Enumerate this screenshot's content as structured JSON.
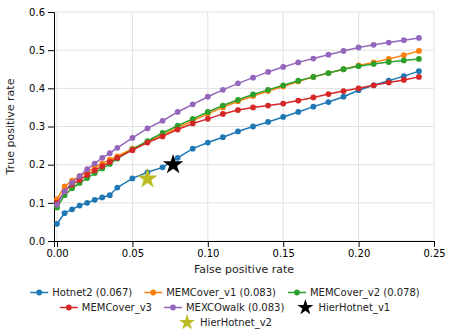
{
  "chart_data": {
    "type": "line",
    "xlabel": "False positive rate",
    "ylabel": "True positive rate",
    "xlim": [
      -0.002,
      0.25
    ],
    "ylim": [
      0.0,
      0.6
    ],
    "xticks": [
      {
        "value": 0.0,
        "label": "0.00"
      },
      0.05,
      {
        "value": 0.1,
        "label": "0.10"
      },
      0.15,
      {
        "value": 0.2,
        "label": "0.20"
      },
      0.25
    ],
    "yticks": [
      {
        "value": 0.0,
        "label": "0.0"
      },
      0.1,
      0.2,
      0.3,
      0.4,
      0.5,
      0.6
    ],
    "grid": true,
    "legend": "bottom",
    "series": [
      {
        "name": "Hotnet2 (0.067)",
        "type": "line",
        "marker": "circle",
        "color": "#1f77b4",
        "x": [
          0.0,
          0.005,
          0.01,
          0.015,
          0.02,
          0.025,
          0.03,
          0.035,
          0.04,
          0.05,
          0.06,
          0.07,
          0.08,
          0.09,
          0.1,
          0.11,
          0.12,
          0.13,
          0.14,
          0.15,
          0.16,
          0.17,
          0.18,
          0.19,
          0.2,
          0.21,
          0.22,
          0.23,
          0.24
        ],
        "values": [
          0.045,
          0.073,
          0.083,
          0.093,
          0.1,
          0.108,
          0.114,
          0.12,
          0.14,
          0.164,
          0.18,
          0.193,
          0.218,
          0.242,
          0.258,
          0.272,
          0.287,
          0.3,
          0.312,
          0.325,
          0.338,
          0.352,
          0.364,
          0.378,
          0.395,
          0.408,
          0.42,
          0.432,
          0.445
        ]
      },
      {
        "name": "MEMCover_v1 (0.083)",
        "type": "line",
        "marker": "circle",
        "color": "#ff7f0e",
        "x": [
          0.0,
          0.005,
          0.01,
          0.015,
          0.02,
          0.025,
          0.03,
          0.035,
          0.04,
          0.05,
          0.06,
          0.07,
          0.08,
          0.09,
          0.1,
          0.11,
          0.12,
          0.13,
          0.14,
          0.15,
          0.16,
          0.17,
          0.18,
          0.19,
          0.2,
          0.21,
          0.22,
          0.23,
          0.24
        ],
        "values": [
          0.11,
          0.143,
          0.158,
          0.17,
          0.18,
          0.193,
          0.203,
          0.213,
          0.222,
          0.242,
          0.26,
          0.277,
          0.297,
          0.315,
          0.333,
          0.35,
          0.366,
          0.38,
          0.393,
          0.405,
          0.418,
          0.43,
          0.44,
          0.45,
          0.46,
          0.468,
          0.477,
          0.487,
          0.498
        ]
      },
      {
        "name": "MEMCover_v2 (0.078)",
        "type": "line",
        "marker": "circle",
        "color": "#2ca02c",
        "x": [
          0.0,
          0.005,
          0.01,
          0.015,
          0.02,
          0.025,
          0.03,
          0.035,
          0.04,
          0.05,
          0.06,
          0.07,
          0.08,
          0.09,
          0.1,
          0.11,
          0.12,
          0.13,
          0.14,
          0.15,
          0.16,
          0.17,
          0.18,
          0.19,
          0.2,
          0.21,
          0.22,
          0.23,
          0.24
        ],
        "values": [
          0.088,
          0.12,
          0.138,
          0.152,
          0.165,
          0.178,
          0.19,
          0.202,
          0.216,
          0.24,
          0.262,
          0.283,
          0.302,
          0.32,
          0.338,
          0.355,
          0.37,
          0.384,
          0.396,
          0.408,
          0.42,
          0.43,
          0.44,
          0.45,
          0.458,
          0.464,
          0.469,
          0.473,
          0.477
        ]
      },
      {
        "name": "MEMCover_v3",
        "type": "line",
        "marker": "circle",
        "color": "#d62728",
        "x": [
          0.0,
          0.005,
          0.01,
          0.015,
          0.02,
          0.025,
          0.03,
          0.035,
          0.04,
          0.05,
          0.06,
          0.07,
          0.08,
          0.09,
          0.1,
          0.11,
          0.12,
          0.13,
          0.14,
          0.15,
          0.16,
          0.17,
          0.18,
          0.19,
          0.2,
          0.21,
          0.22,
          0.23,
          0.24
        ],
        "values": [
          0.1,
          0.13,
          0.148,
          0.16,
          0.173,
          0.185,
          0.196,
          0.207,
          0.218,
          0.238,
          0.258,
          0.274,
          0.292,
          0.308,
          0.32,
          0.333,
          0.343,
          0.35,
          0.355,
          0.36,
          0.368,
          0.376,
          0.385,
          0.393,
          0.4,
          0.408,
          0.415,
          0.422,
          0.43
        ]
      },
      {
        "name": "MEXCOwalk (0.083)",
        "type": "line",
        "marker": "circle",
        "color": "#9467bd",
        "x": [
          0.0,
          0.005,
          0.01,
          0.015,
          0.02,
          0.025,
          0.03,
          0.035,
          0.04,
          0.05,
          0.06,
          0.07,
          0.08,
          0.09,
          0.1,
          0.11,
          0.12,
          0.13,
          0.14,
          0.15,
          0.16,
          0.17,
          0.18,
          0.19,
          0.2,
          0.21,
          0.22,
          0.23,
          0.24
        ],
        "values": [
          0.095,
          0.13,
          0.153,
          0.17,
          0.188,
          0.203,
          0.218,
          0.23,
          0.244,
          0.27,
          0.295,
          0.315,
          0.338,
          0.358,
          0.378,
          0.396,
          0.413,
          0.428,
          0.443,
          0.456,
          0.468,
          0.478,
          0.488,
          0.498,
          0.507,
          0.514,
          0.52,
          0.526,
          0.532
        ]
      },
      {
        "name": "HierHotnet_v1",
        "type": "scatter",
        "marker": "star",
        "color": "#000000",
        "x": [
          0.077
        ],
        "values": [
          0.2
        ]
      },
      {
        "name": "HierHotnet_v2",
        "type": "scatter",
        "marker": "star",
        "color": "#bcbd22",
        "x": [
          0.06
        ],
        "values": [
          0.163
        ]
      }
    ]
  }
}
